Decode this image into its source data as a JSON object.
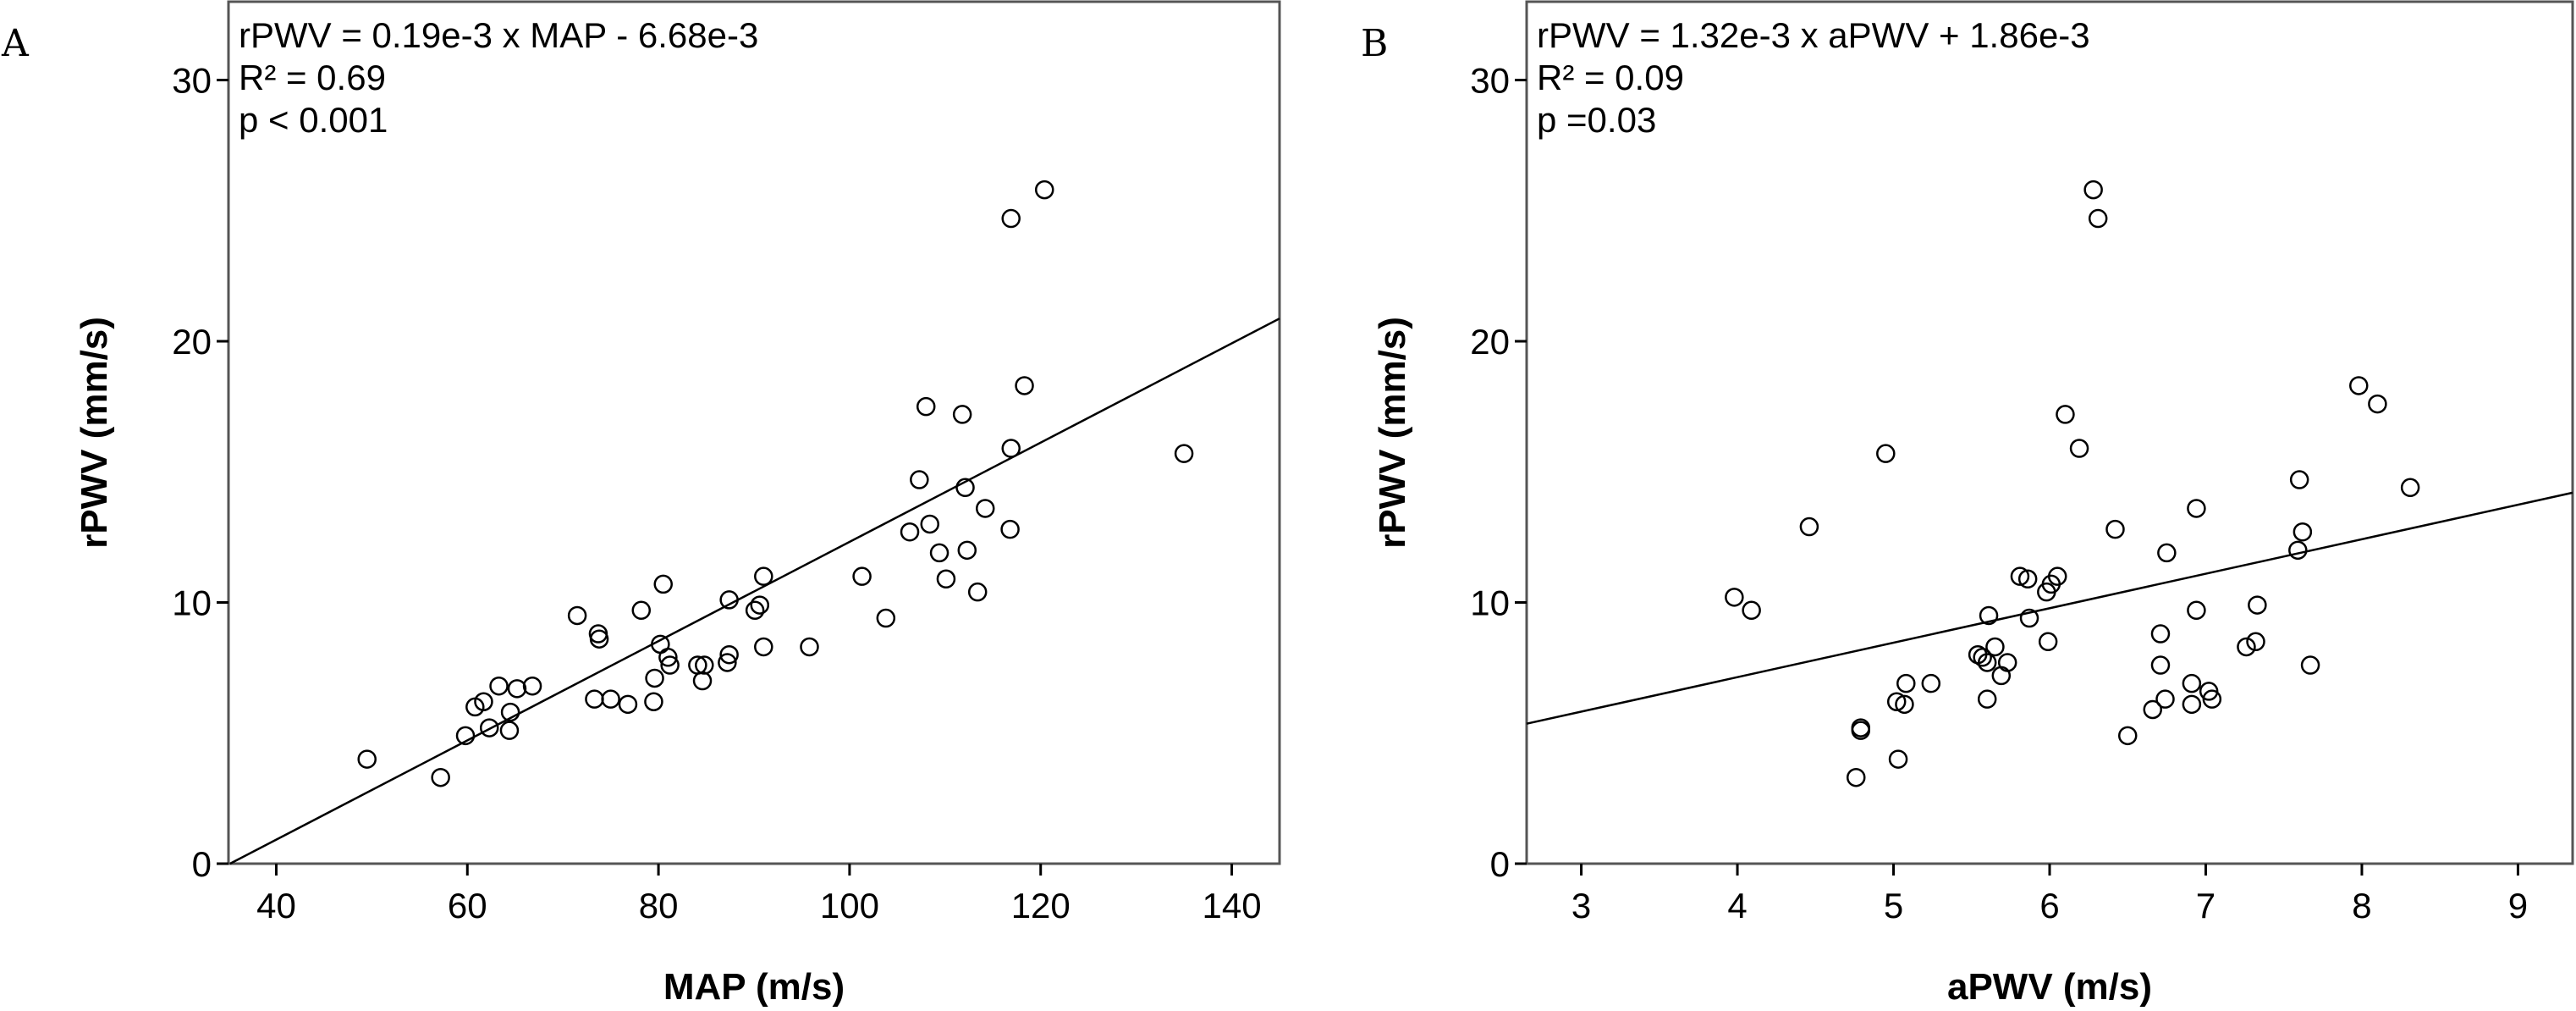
{
  "chart_data": [
    {
      "type": "scatter",
      "panel_label": "A",
      "xlabel": "MAP (m/s)",
      "ylabel": "rPWV (mm/s)",
      "xlim": [
        35,
        145
      ],
      "ylim": [
        0,
        33
      ],
      "xticks": [
        40,
        60,
        80,
        100,
        120,
        140
      ],
      "yticks": [
        0,
        10,
        20,
        30
      ],
      "x_tick_labels": [
        "40",
        "60",
        "80",
        "100",
        "120",
        "140"
      ],
      "y_tick_labels": [
        "0",
        "10",
        "20",
        "30"
      ],
      "annotation": [
        "rPWV  = 0.19e-3 x MAP - 6.68e-3",
        "R² = 0.69",
        "p < 0.001"
      ],
      "fit_line": {
        "slope": 0.19,
        "intercept": -6.68
      },
      "grid": false,
      "points": [
        [
          49.5,
          4.0
        ],
        [
          57.2,
          3.3
        ],
        [
          59.8,
          4.9
        ],
        [
          60.8,
          6.0
        ],
        [
          61.7,
          6.2
        ],
        [
          62.3,
          5.2
        ],
        [
          63.3,
          6.8
        ],
        [
          64.5,
          5.8
        ],
        [
          64.4,
          5.1
        ],
        [
          65.2,
          6.7
        ],
        [
          66.8,
          6.8
        ],
        [
          71.5,
          9.5
        ],
        [
          73.3,
          6.3
        ],
        [
          73.7,
          8.8
        ],
        [
          73.8,
          8.6
        ],
        [
          75.0,
          6.3
        ],
        [
          76.8,
          6.1
        ],
        [
          78.2,
          9.7
        ],
        [
          79.5,
          6.2
        ],
        [
          79.6,
          7.1
        ],
        [
          80.2,
          8.4
        ],
        [
          80.5,
          10.7
        ],
        [
          81.0,
          7.9
        ],
        [
          81.2,
          7.6
        ],
        [
          84.1,
          7.6
        ],
        [
          84.8,
          7.6
        ],
        [
          84.6,
          7.0
        ],
        [
          87.2,
          7.7
        ],
        [
          87.4,
          8.0
        ],
        [
          87.4,
          10.1
        ],
        [
          90.1,
          9.7
        ],
        [
          90.6,
          9.9
        ],
        [
          91.0,
          11.0
        ],
        [
          91.0,
          8.3
        ],
        [
          95.8,
          8.3
        ],
        [
          101.3,
          11.0
        ],
        [
          103.8,
          9.4
        ],
        [
          106.3,
          12.7
        ],
        [
          107.3,
          14.7
        ],
        [
          108.0,
          17.5
        ],
        [
          108.4,
          13.0
        ],
        [
          109.4,
          11.9
        ],
        [
          110.1,
          10.9
        ],
        [
          111.8,
          17.2
        ],
        [
          112.1,
          14.4
        ],
        [
          112.3,
          12.0
        ],
        [
          113.4,
          10.4
        ],
        [
          114.2,
          13.6
        ],
        [
          116.8,
          12.8
        ],
        [
          116.9,
          15.9
        ],
        [
          116.9,
          24.7
        ],
        [
          118.3,
          18.3
        ],
        [
          120.4,
          25.8
        ],
        [
          135.0,
          15.7
        ]
      ]
    },
    {
      "type": "scatter",
      "panel_label": "B",
      "xlabel": "aPWV (m/s)",
      "ylabel": "rPWV (mm/s)",
      "xlim": [
        2.65,
        9.35
      ],
      "ylim": [
        0,
        33
      ],
      "xticks": [
        3,
        4,
        5,
        6,
        7,
        8,
        9
      ],
      "yticks": [
        0,
        10,
        20,
        30
      ],
      "x_tick_labels": [
        "3",
        "4",
        "5",
        "6",
        "7",
        "8",
        "9"
      ],
      "y_tick_labels": [
        "0",
        "10",
        "20",
        "30"
      ],
      "annotation": [
        "rPWV  = 1.32e-3 x aPWV + 1.86e-3",
        "R² = 0.09",
        "p =0.03"
      ],
      "fit_line": {
        "slope": 1.32,
        "intercept": 1.86
      },
      "grid": false,
      "points": [
        [
          3.98,
          10.2
        ],
        [
          4.09,
          9.7
        ],
        [
          4.46,
          12.9
        ],
        [
          4.76,
          3.3
        ],
        [
          4.79,
          5.2
        ],
        [
          4.79,
          5.1
        ],
        [
          4.95,
          15.7
        ],
        [
          5.02,
          6.2
        ],
        [
          5.03,
          4.0
        ],
        [
          5.07,
          6.1
        ],
        [
          5.08,
          6.9
        ],
        [
          5.24,
          6.9
        ],
        [
          5.54,
          8.0
        ],
        [
          5.57,
          7.9
        ],
        [
          5.6,
          7.7
        ],
        [
          5.6,
          6.3
        ],
        [
          5.61,
          9.5
        ],
        [
          5.65,
          8.3
        ],
        [
          5.69,
          7.2
        ],
        [
          5.73,
          7.7
        ],
        [
          5.81,
          11.0
        ],
        [
          5.86,
          10.9
        ],
        [
          5.87,
          9.4
        ],
        [
          5.98,
          10.4
        ],
        [
          5.99,
          8.5
        ],
        [
          6.01,
          10.7
        ],
        [
          6.05,
          11.0
        ],
        [
          6.1,
          17.2
        ],
        [
          6.19,
          15.9
        ],
        [
          6.28,
          25.8
        ],
        [
          6.31,
          24.7
        ],
        [
          6.42,
          12.8
        ],
        [
          6.5,
          4.9
        ],
        [
          6.66,
          5.9
        ],
        [
          6.71,
          8.8
        ],
        [
          6.71,
          7.6
        ],
        [
          6.74,
          6.3
        ],
        [
          6.75,
          11.9
        ],
        [
          6.91,
          6.9
        ],
        [
          6.91,
          6.1
        ],
        [
          6.94,
          13.6
        ],
        [
          6.94,
          9.7
        ],
        [
          7.02,
          6.6
        ],
        [
          7.04,
          6.3
        ],
        [
          7.26,
          8.3
        ],
        [
          7.32,
          8.5
        ],
        [
          7.33,
          9.9
        ],
        [
          7.59,
          12.0
        ],
        [
          7.6,
          14.7
        ],
        [
          7.62,
          12.7
        ],
        [
          7.67,
          7.6
        ],
        [
          7.98,
          18.3
        ],
        [
          8.1,
          17.6
        ],
        [
          8.31,
          14.4
        ]
      ]
    }
  ]
}
